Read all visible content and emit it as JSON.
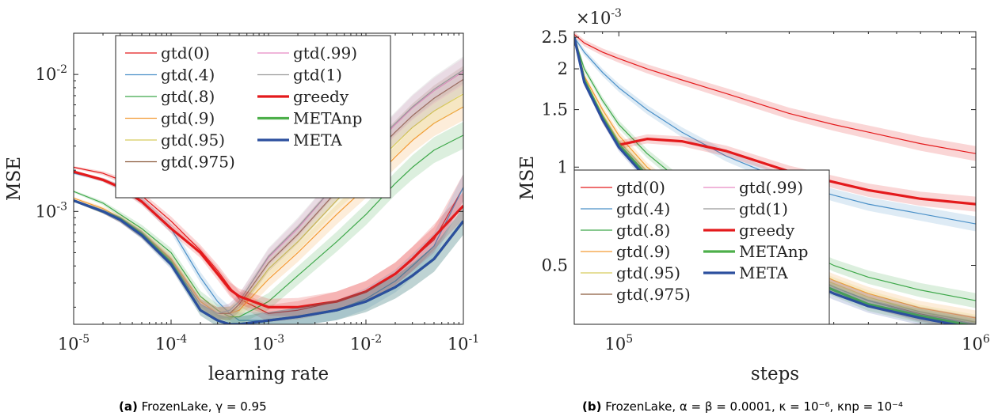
{
  "chart_data": [
    {
      "type": "line",
      "caption_tag": "(a)",
      "caption_text": "FrozenLake, γ = 0.95",
      "xlabel": "learning rate",
      "ylabel": "MSE",
      "xscale": "log",
      "yscale": "log",
      "xlim": [
        1e-05,
        0.1
      ],
      "ylim": [
        0.00015,
        0.02
      ],
      "x_ticks": [
        {
          "base": "10",
          "exp": "-5"
        },
        {
          "base": "10",
          "exp": "-4"
        },
        {
          "base": "10",
          "exp": "-3"
        },
        {
          "base": "10",
          "exp": "-2"
        },
        {
          "base": "10",
          "exp": "-1"
        }
      ],
      "y_ticks": [
        {
          "base": "10",
          "exp": "-3"
        },
        {
          "base": "10",
          "exp": "-2"
        }
      ],
      "legend_placement": "top-center",
      "x": [
        1e-05,
        2e-05,
        3e-05,
        5e-05,
        0.0001,
        0.0002,
        0.0003,
        0.0004,
        0.0005,
        0.001,
        0.002,
        0.005,
        0.01,
        0.02,
        0.03,
        0.05,
        0.1
      ],
      "series": [
        {
          "name": "gtd(0)",
          "color": "#e41a1c",
          "width": 1.2,
          "values": [
            0.0021,
            0.0019,
            0.0017,
            0.0013,
            0.00085,
            0.00052,
            0.00037,
            0.00028,
            0.00023,
            0.00018,
            0.00019,
            0.00022,
            0.00026,
            0.00035,
            0.00045,
            0.00062,
            0.0015
          ]
        },
        {
          "name": "gtd(.4)",
          "color": "#4a90c8",
          "width": 1.2,
          "values": [
            0.0019,
            0.0017,
            0.0015,
            0.0012,
            0.00075,
            0.00033,
            0.00022,
            0.00018,
            0.00016,
            0.00016,
            0.00017,
            0.00019,
            0.00023,
            0.00031,
            0.0004,
            0.00056,
            0.0015
          ]
        },
        {
          "name": "gtd(.8)",
          "color": "#3ea84a",
          "width": 1.2,
          "values": [
            0.0014,
            0.00115,
            0.00095,
            0.00075,
            0.0005,
            0.00024,
            0.00019,
            0.00017,
            0.00017,
            0.00022,
            0.00034,
            0.0006,
            0.00095,
            0.0016,
            0.0021,
            0.0028,
            0.0036
          ]
        },
        {
          "name": "gtd(.9)",
          "color": "#f39c34",
          "width": 1.2,
          "values": [
            0.00125,
            0.00105,
            0.0009,
            0.0007,
            0.00045,
            0.00022,
            0.00018,
            0.00018,
            0.00019,
            0.00032,
            0.0005,
            0.00095,
            0.0015,
            0.0025,
            0.0033,
            0.0044,
            0.0058
          ]
        },
        {
          "name": "gtd(.95)",
          "color": "#d8cc5e",
          "width": 1.2,
          "values": [
            0.0012,
            0.001,
            0.00088,
            0.00069,
            0.00044,
            0.00021,
            0.00018,
            0.00018,
            0.0002,
            0.00038,
            0.0006,
            0.0012,
            0.0019,
            0.0031,
            0.0041,
            0.0054,
            0.0072
          ]
        },
        {
          "name": "gtd(.975)",
          "color": "#8b5a3c",
          "width": 1.2,
          "values": [
            0.0012,
            0.001,
            0.00087,
            0.00068,
            0.00043,
            0.00021,
            0.00018,
            0.00018,
            0.00021,
            0.00042,
            0.00068,
            0.0014,
            0.0023,
            0.0038,
            0.005,
            0.0067,
            0.0092
          ]
        },
        {
          "name": "gtd(.99)",
          "color": "#e78ac3",
          "width": 1.2,
          "values": [
            0.0012,
            0.001,
            0.00087,
            0.00068,
            0.00043,
            0.00021,
            0.00018,
            0.00019,
            0.00022,
            0.00046,
            0.00075,
            0.0016,
            0.0026,
            0.0043,
            0.0057,
            0.0076,
            0.0105
          ]
        },
        {
          "name": "gtd(1)",
          "color": "#999999",
          "width": 1.2,
          "values": [
            0.0012,
            0.001,
            0.00087,
            0.00068,
            0.00043,
            0.00021,
            0.00018,
            0.00019,
            0.00022,
            0.00047,
            0.00077,
            0.0016,
            0.0027,
            0.0044,
            0.0058,
            0.0078,
            0.0108
          ]
        },
        {
          "name": "greedy",
          "color": "#e41a1c",
          "width": 3.2,
          "values": [
            0.00195,
            0.0017,
            0.0015,
            0.00118,
            0.00075,
            0.0005,
            0.00035,
            0.00027,
            0.00024,
            0.0002,
            0.0002,
            0.00022,
            0.00026,
            0.00035,
            0.00045,
            0.00065,
            0.0011
          ]
        },
        {
          "name": "METAnp",
          "color": "#4daf4a",
          "width": 3.2,
          "values": [
            0.0012,
            0.001,
            0.00088,
            0.00068,
            0.00042,
            0.00019,
            0.00016,
            0.00015,
            0.00015,
            0.00016,
            0.00017,
            0.00019,
            0.00022,
            0.00028,
            0.00034,
            0.00045,
            0.00085
          ]
        },
        {
          "name": "META",
          "color": "#2c4f9e",
          "width": 3.2,
          "values": [
            0.0012,
            0.001,
            0.00087,
            0.00067,
            0.00041,
            0.00019,
            0.00016,
            0.00015,
            0.00015,
            0.00016,
            0.00017,
            0.00019,
            0.00022,
            0.00028,
            0.00034,
            0.00045,
            0.00085
          ]
        }
      ]
    },
    {
      "type": "line",
      "caption_tag": "(b)",
      "caption_text": "FrozenLake, α = β = 0.0001, κ = 10⁻⁶, κnp = 10⁻⁴",
      "xlabel": "steps",
      "ylabel": "MSE",
      "y_multiplier": {
        "base": "×10",
        "exp": "-3"
      },
      "xscale": "log",
      "yscale": "log",
      "xlim": [
        75000,
        1000000
      ],
      "ylim": [
        0.33,
        2.6
      ],
      "x_ticks": [
        {
          "base": "10",
          "exp": "5"
        },
        {
          "base": "10",
          "exp": "6"
        }
      ],
      "y_ticks": [
        "0.5",
        "1",
        "1.5",
        "2",
        "2.5"
      ],
      "legend_placement": "bottom-left",
      "x": [
        75000,
        80000,
        90000,
        100000,
        120000,
        150000,
        200000,
        300000,
        400000,
        500000,
        700000,
        1000000
      ],
      "series": [
        {
          "name": "gtd(0)",
          "color": "#e41a1c",
          "width": 1.2,
          "values": [
            2.55,
            2.4,
            2.25,
            2.15,
            2.0,
            1.85,
            1.68,
            1.46,
            1.35,
            1.28,
            1.18,
            1.1
          ]
        },
        {
          "name": "gtd(.4)",
          "color": "#4a90c8",
          "width": 1.2,
          "values": [
            2.5,
            2.25,
            1.95,
            1.75,
            1.5,
            1.28,
            1.08,
            0.9,
            0.82,
            0.77,
            0.72,
            0.67
          ]
        },
        {
          "name": "gtd(.8)",
          "color": "#3ea84a",
          "width": 1.2,
          "values": [
            2.5,
            2.0,
            1.6,
            1.35,
            1.1,
            0.9,
            0.74,
            0.58,
            0.5,
            0.46,
            0.42,
            0.39
          ]
        },
        {
          "name": "gtd(.9)",
          "color": "#f39c34",
          "width": 1.2,
          "values": [
            2.5,
            1.9,
            1.5,
            1.25,
            1.0,
            0.82,
            0.66,
            0.52,
            0.45,
            0.41,
            0.37,
            0.345
          ]
        },
        {
          "name": "gtd(.95)",
          "color": "#d8cc5e",
          "width": 1.2,
          "values": [
            2.5,
            1.85,
            1.45,
            1.2,
            0.97,
            0.8,
            0.64,
            0.5,
            0.44,
            0.4,
            0.36,
            0.335
          ]
        },
        {
          "name": "gtd(.975)",
          "color": "#8b5a3c",
          "width": 1.2,
          "values": [
            2.5,
            1.83,
            1.42,
            1.18,
            0.95,
            0.78,
            0.63,
            0.5,
            0.43,
            0.39,
            0.355,
            0.33
          ]
        },
        {
          "name": "gtd(.99)",
          "color": "#e78ac3",
          "width": 1.2,
          "values": [
            2.5,
            1.82,
            1.41,
            1.17,
            0.94,
            0.78,
            0.62,
            0.49,
            0.43,
            0.39,
            0.353,
            0.33
          ]
        },
        {
          "name": "gtd(1)",
          "color": "#999999",
          "width": 1.2,
          "values": [
            2.5,
            1.82,
            1.41,
            1.17,
            0.94,
            0.77,
            0.62,
            0.49,
            0.43,
            0.39,
            0.352,
            0.33
          ]
        },
        {
          "name": "greedy",
          "color": "#e41a1c",
          "width": 3.2,
          "values": [
            2.5,
            1.85,
            1.4,
            1.17,
            1.22,
            1.2,
            1.12,
            0.97,
            0.9,
            0.85,
            0.8,
            0.77
          ]
        },
        {
          "name": "METAnp",
          "color": "#4daf4a",
          "width": 3.2,
          "values": [
            2.5,
            1.85,
            1.42,
            1.17,
            0.94,
            0.77,
            0.62,
            0.48,
            0.42,
            0.38,
            0.35,
            0.325
          ]
        },
        {
          "name": "META",
          "color": "#2c4f9e",
          "width": 3.2,
          "values": [
            2.5,
            1.82,
            1.4,
            1.15,
            0.92,
            0.75,
            0.6,
            0.47,
            0.41,
            0.375,
            0.345,
            0.32
          ]
        }
      ]
    }
  ]
}
